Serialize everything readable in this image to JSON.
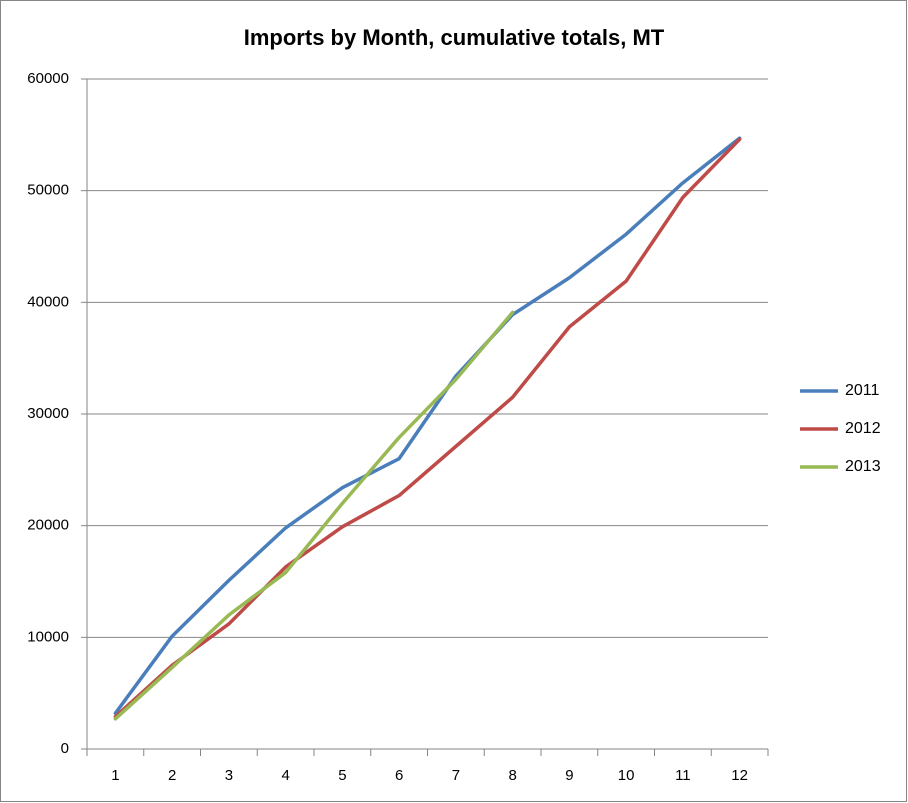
{
  "chart_data": {
    "type": "line",
    "title": "Imports by Month, cumulative totals, MT",
    "categories": [
      "1",
      "2",
      "3",
      "4",
      "5",
      "6",
      "7",
      "8",
      "9",
      "10",
      "11",
      "12"
    ],
    "series": [
      {
        "name": "2011",
        "color": "#4a7ebb",
        "values": [
          3200,
          10100,
          15100,
          19800,
          23400,
          26000,
          33400,
          38900,
          42200,
          46100,
          50700,
          54700
        ]
      },
      {
        "name": "2012",
        "color": "#be4b48",
        "values": [
          2900,
          7500,
          11200,
          16300,
          19900,
          22700,
          27100,
          31500,
          37800,
          41900,
          49400,
          54600
        ]
      },
      {
        "name": "2013",
        "color": "#98b954",
        "values": [
          2700,
          7300,
          12000,
          15800,
          22000,
          27900,
          33100,
          39100,
          null,
          null,
          null,
          null
        ]
      }
    ],
    "ylim": [
      0,
      60000
    ],
    "yticks": [
      0,
      10000,
      20000,
      30000,
      40000,
      50000,
      60000
    ],
    "grid": true,
    "legend": "right"
  }
}
